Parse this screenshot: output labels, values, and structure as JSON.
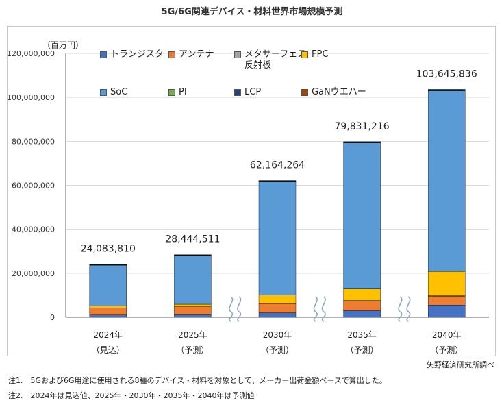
{
  "title": "5G/6G関連デバイス・材料世界市場規模予測",
  "unit_label": "（百万円）",
  "source": "矢野経済研究所調べ",
  "notes": [
    "注1.　5Gおよび6G用途に使用される8種のデバイス・材料を対象として、メーカー出荷金額ベースで算出した。",
    "注2.　2024年は見込値、2025年・2030年・2035年・2040年は予測値"
  ],
  "colors": {
    "transistor": "#4472c4",
    "antenna": "#ed7d31",
    "metasurface": "#a5a5a5",
    "fpc": "#ffc000",
    "soc": "#5b9bd5",
    "pi": "#70ad47",
    "lcp": "#264478",
    "gan": "#9e480e"
  },
  "chart_data": {
    "type": "bar",
    "stacked": true,
    "categories": [
      "2024年\n（見込）",
      "2025年\n（予測）",
      "2030年\n（予測）",
      "2035年\n（予測）",
      "2040年\n（予測）"
    ],
    "series": [
      {
        "key": "transistor",
        "name": "トランジスタ",
        "values": [
          1000000,
          1200000,
          2000000,
          3000000,
          5500000
        ]
      },
      {
        "key": "antenna",
        "name": "アンテナ",
        "values": [
          3200000,
          3600000,
          4200000,
          4400000,
          4000000
        ]
      },
      {
        "key": "metasurface",
        "name": "メタサーフェス\n反射板",
        "values": [
          0,
          0,
          100000,
          200000,
          300000
        ]
      },
      {
        "key": "fpc",
        "name": "FPC",
        "values": [
          1000000,
          1100000,
          3800000,
          5300000,
          11000000
        ]
      },
      {
        "key": "soc",
        "name": "SoC",
        "values": [
          18500000,
          22150000,
          51600000,
          66400000,
          82200000
        ]
      },
      {
        "key": "pi",
        "name": "PI",
        "values": [
          80000,
          90000,
          110000,
          130000,
          150000
        ]
      },
      {
        "key": "lcp",
        "name": "LCP",
        "values": [
          200000,
          200000,
          250000,
          300000,
          400000
        ]
      },
      {
        "key": "gan",
        "name": "GaNウエハー",
        "values": [
          103810,
          104511,
          104264,
          101216,
          95836
        ]
      }
    ],
    "totals": [
      24083810,
      28444511,
      62164264,
      79831216,
      103645836
    ],
    "total_labels": [
      "24,083,810",
      "28,444,511",
      "62,164,264",
      "79,831,216",
      "103,645,836"
    ],
    "ylim": [
      0,
      120000000
    ],
    "yticks": [
      0,
      20000000,
      40000000,
      60000000,
      80000000,
      100000000,
      120000000
    ],
    "ytick_labels": [
      "0",
      "20,000,000",
      "40,000,000",
      "60,000,000",
      "80,000,000",
      "100,000,000",
      "120,000,000"
    ],
    "grid": true,
    "legend_position": "top-inside",
    "axis_break_between_categories": true
  }
}
